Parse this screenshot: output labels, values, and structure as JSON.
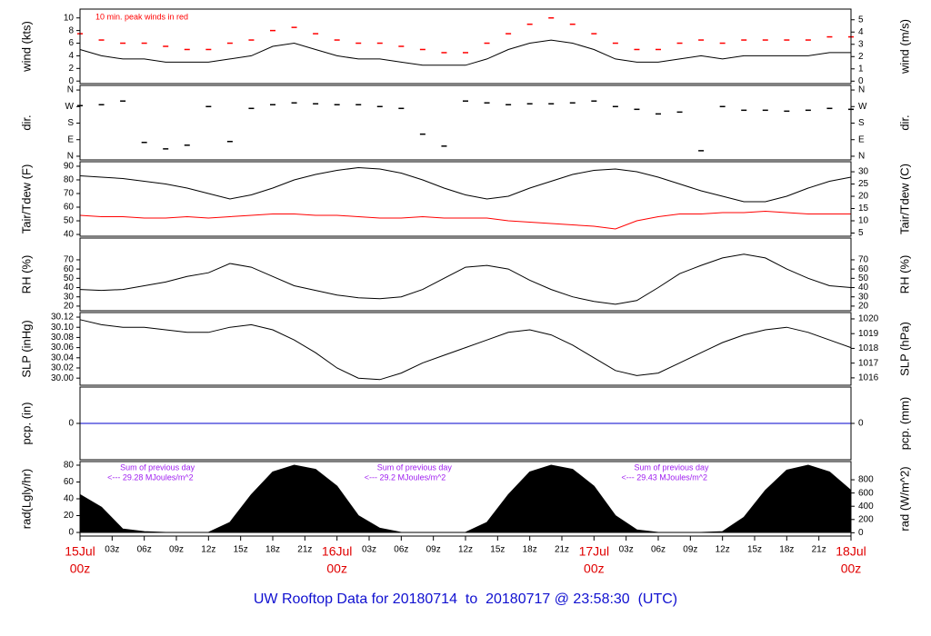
{
  "x_axis": {
    "x": [
      0,
      2,
      4,
      6,
      8,
      10,
      12,
      14,
      16,
      18,
      20,
      22,
      24,
      26,
      28,
      30,
      32,
      34,
      36,
      38,
      40,
      42,
      44,
      46,
      48,
      50,
      52,
      54,
      56,
      58,
      60,
      62,
      64,
      66,
      68,
      70,
      72
    ],
    "xlim": [
      0,
      72
    ],
    "xticks": [
      {
        "value": 0,
        "label": "00z"
      },
      {
        "value": 3,
        "label": "03z"
      },
      {
        "value": 6,
        "label": "06z"
      },
      {
        "value": 9,
        "label": "09z"
      },
      {
        "value": 12,
        "label": "12z"
      },
      {
        "value": 15,
        "label": "15z"
      },
      {
        "value": 18,
        "label": "18z"
      },
      {
        "value": 21,
        "label": "21z"
      },
      {
        "value": 24,
        "label": "00z"
      },
      {
        "value": 27,
        "label": "03z"
      },
      {
        "value": 30,
        "label": "06z"
      },
      {
        "value": 33,
        "label": "09z"
      },
      {
        "value": 36,
        "label": "12z"
      },
      {
        "value": 39,
        "label": "15z"
      },
      {
        "value": 42,
        "label": "18z"
      },
      {
        "value": 45,
        "label": "21z"
      },
      {
        "value": 48,
        "label": "00z"
      },
      {
        "value": 51,
        "label": "03z"
      },
      {
        "value": 54,
        "label": "06z"
      },
      {
        "value": 57,
        "label": "09z"
      },
      {
        "value": 60,
        "label": "12z"
      },
      {
        "value": 63,
        "label": "15z"
      },
      {
        "value": 66,
        "label": "18z"
      },
      {
        "value": 69,
        "label": "21z"
      },
      {
        "value": 72,
        "label": "00z"
      }
    ],
    "day_ticks": [
      {
        "value": 0,
        "label": "15Jul"
      },
      {
        "value": 24,
        "label": "16Jul"
      },
      {
        "value": 48,
        "label": "17Jul"
      },
      {
        "value": 72,
        "label": "18Jul"
      }
    ]
  },
  "footer_title": "UW Rooftop Data for 20180714  to  20180717 @ 23:58:30  (UTC)",
  "chart_data": [
    {
      "type": "line",
      "ylabel": "wind (kts)",
      "y2label": "wind (m/s)",
      "ylim": [
        -0.4,
        11.4
      ],
      "yticks": [
        0,
        2,
        4,
        6,
        8,
        10
      ],
      "y2lim": [
        -0.2,
        5.87
      ],
      "y2ticks": [
        0,
        1,
        2,
        3,
        4,
        5
      ],
      "annotations": [
        "10 min. peak winds in red"
      ],
      "series": [
        {
          "name": "wind",
          "color": "#000000",
          "values": [
            5,
            4,
            3.5,
            3.5,
            3,
            3,
            3,
            3.5,
            4,
            5.5,
            6,
            5,
            4,
            3.5,
            3.5,
            3,
            2.5,
            2.5,
            2.5,
            3.5,
            5,
            6,
            6.5,
            6,
            5,
            3.5,
            3,
            3,
            3.5,
            4,
            3.5,
            4,
            4,
            4,
            4,
            4.5,
            4.5
          ]
        },
        {
          "name": "peak",
          "type": "dash",
          "color": "#ff0000",
          "values": [
            7.5,
            6.5,
            6,
            6,
            5.5,
            5,
            5,
            6,
            6.5,
            8,
            8.5,
            7.5,
            6.5,
            6,
            6,
            5.5,
            5,
            4.5,
            4.5,
            6,
            7.5,
            9,
            10,
            9,
            7.5,
            6,
            5,
            5,
            6,
            6.5,
            6,
            6.5,
            6.5,
            6.5,
            6.5,
            7,
            7
          ]
        }
      ]
    },
    {
      "type": "dash",
      "ylabel": "dir.",
      "y2label": "dir.",
      "ylim": [
        -20,
        385
      ],
      "yticks": [
        {
          "value": 0,
          "label": "N"
        },
        {
          "value": 90,
          "label": "E"
        },
        {
          "value": 180,
          "label": "S"
        },
        {
          "value": 270,
          "label": "W"
        },
        {
          "value": 360,
          "label": "N"
        }
      ],
      "y2lim": [
        -20,
        385
      ],
      "y2ticks": [
        {
          "value": 0,
          "label": "N"
        },
        {
          "value": 90,
          "label": "E"
        },
        {
          "value": 180,
          "label": "S"
        },
        {
          "value": 270,
          "label": "W"
        },
        {
          "value": 360,
          "label": "N"
        }
      ],
      "series": [
        {
          "name": "dir",
          "color": "#000000",
          "values": [
            275,
            280,
            300,
            75,
            40,
            60,
            270,
            80,
            260,
            280,
            290,
            285,
            280,
            280,
            270,
            260,
            120,
            55,
            300,
            290,
            280,
            285,
            285,
            290,
            300,
            270,
            255,
            230,
            240,
            30,
            270,
            250,
            250,
            245,
            250,
            260,
            255
          ]
        }
      ]
    },
    {
      "type": "line",
      "ylabel": "Tair/Tdew (F)",
      "y2label": "Tair/Tdew (C)",
      "ylim": [
        38.7,
        93.3
      ],
      "yticks": [
        40,
        50,
        60,
        70,
        80,
        90
      ],
      "y2lim": [
        3.7,
        34.1
      ],
      "y2ticks": [
        5,
        10,
        15,
        20,
        25,
        30
      ],
      "series": [
        {
          "name": "Tair",
          "color": "#000000",
          "values": [
            83,
            82,
            81,
            79,
            77,
            74,
            70,
            66,
            69,
            74,
            80,
            84,
            87,
            89,
            88,
            85,
            80,
            74,
            69,
            66,
            68,
            74,
            79,
            84,
            87,
            88,
            86,
            82,
            77,
            72,
            68,
            64,
            64,
            68,
            74,
            79,
            82
          ]
        },
        {
          "name": "Tdew",
          "color": "#ff0000",
          "values": [
            54,
            53,
            53,
            52,
            52,
            53,
            52,
            53,
            54,
            55,
            55,
            54,
            54,
            53,
            52,
            52,
            53,
            52,
            52,
            52,
            50,
            49,
            48,
            47,
            46,
            44,
            50,
            53,
            55,
            55,
            56,
            56,
            57,
            56,
            55,
            55,
            55
          ]
        }
      ]
    },
    {
      "type": "line",
      "ylabel": "RH (%)",
      "y2label": "RH (%)",
      "ylim": [
        15,
        93.5
      ],
      "yticks": [
        20,
        30,
        40,
        50,
        60,
        70
      ],
      "y2lim": [
        15,
        93.5
      ],
      "y2ticks": [
        20,
        30,
        40,
        50,
        60,
        70
      ],
      "series": [
        {
          "name": "RH",
          "color": "#000000",
          "values": [
            38,
            37,
            38,
            42,
            46,
            52,
            56,
            66,
            62,
            52,
            42,
            37,
            32,
            29,
            28,
            30,
            38,
            50,
            62,
            64,
            60,
            48,
            38,
            30,
            25,
            22,
            26,
            40,
            55,
            64,
            72,
            76,
            72,
            60,
            50,
            42,
            40
          ]
        }
      ]
    },
    {
      "type": "line",
      "ylabel": "SLP (inHg)",
      "y2label": "SLP (hPa)",
      "ylim": [
        29.986,
        30.129
      ],
      "yticks": [
        {
          "value": 30,
          "label": "30.00"
        },
        30.02,
        30.04,
        30.06,
        30.08,
        {
          "value": 30.1,
          "label": "30.10"
        },
        30.12
      ],
      "y2lim": [
        1015.5,
        1020.43
      ],
      "y2ticks": [
        1016,
        1017,
        1018,
        1019,
        1020
      ],
      "series": [
        {
          "name": "SLP",
          "color": "#000000",
          "values": [
            30.115,
            30.105,
            30.1,
            30.1,
            30.095,
            30.09,
            30.09,
            30.1,
            30.105,
            30.095,
            30.075,
            30.05,
            30.02,
            30,
            29.997,
            30.01,
            30.03,
            30.045,
            30.06,
            30.075,
            30.09,
            30.095,
            30.085,
            30.065,
            30.04,
            30.015,
            30.005,
            30.01,
            30.03,
            30.05,
            30.07,
            30.085,
            30.095,
            30.1,
            30.09,
            30.075,
            30.06
          ]
        }
      ]
    },
    {
      "type": "line",
      "ylabel": "pcp. (in)",
      "y2label": "pcp. (mm)",
      "ylim": [
        -1,
        1
      ],
      "yticks": [
        0
      ],
      "y2lim": [
        -25.4,
        25.4
      ],
      "y2ticks": [
        0
      ],
      "series": [
        {
          "name": "pcp",
          "color": "#0000cc",
          "values": [
            0,
            0,
            0,
            0,
            0,
            0,
            0,
            0,
            0,
            0,
            0,
            0,
            0,
            0,
            0,
            0,
            0,
            0,
            0,
            0,
            0,
            0,
            0,
            0,
            0,
            0,
            0,
            0,
            0,
            0,
            0,
            0,
            0,
            0,
            0,
            0,
            0
          ]
        }
      ]
    },
    {
      "type": "area",
      "ylabel": "rad(Lgly/hr)",
      "y2label": "rad (W/m^2)",
      "ylim": [
        -4.3,
        84.3
      ],
      "yticks": [
        0,
        20,
        40,
        60,
        80
      ],
      "y2lim": [
        -50,
        1075
      ],
      "y2ticks": [
        0,
        200,
        400,
        600,
        800
      ],
      "annotations": [
        "Sum of previous day",
        "<--- 29.28 MJoules/m^2",
        "Sum of previous day",
        "<--- 29.2 MJoules/m^2",
        "Sum of previous day",
        "<--- 29.43 MJoules/m^2"
      ],
      "series": [
        {
          "name": "rad",
          "color": "#000000",
          "values": [
            45,
            30,
            4,
            1,
            0,
            0,
            0,
            12,
            45,
            72,
            80,
            75,
            55,
            20,
            5,
            0,
            0,
            0,
            0,
            12,
            45,
            72,
            80,
            75,
            55,
            20,
            3,
            0,
            0,
            0,
            1,
            18,
            50,
            74,
            80,
            72,
            50
          ]
        }
      ]
    }
  ]
}
